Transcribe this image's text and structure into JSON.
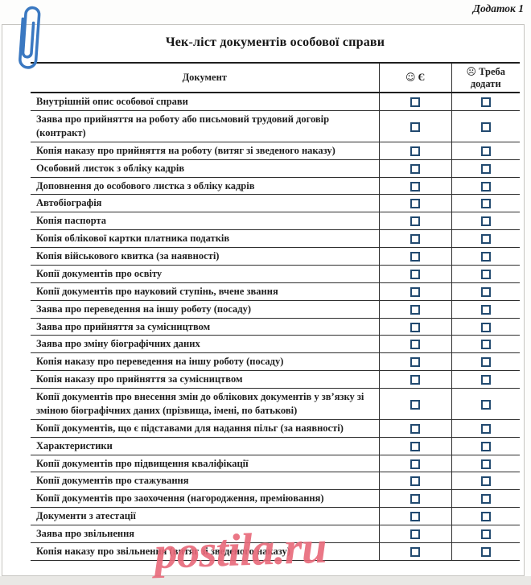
{
  "page": {
    "appendix_label": "Додаток 1",
    "watermark_text": "postila.ru"
  },
  "document": {
    "title": "Чек-ліст документів особової справи"
  },
  "table": {
    "headers": {
      "document": "Документ",
      "have_icon": "☺",
      "have_label": "Є",
      "need_icon": "☹",
      "need_label": "Треба додати"
    },
    "rows": [
      {
        "label": "Внутрішній опис особової справи",
        "have_checked": false,
        "need_checked": false
      },
      {
        "label": "Заява про прийняття на роботу або письмовий трудовий договір (контракт)",
        "have_checked": false,
        "need_checked": false
      },
      {
        "label": "Копія наказу про прийняття на роботу (витяг зі зведеного наказу)",
        "have_checked": false,
        "need_checked": false
      },
      {
        "label": "Особовий листок з обліку кадрів",
        "have_checked": false,
        "need_checked": false
      },
      {
        "label": "Доповнення до особового листка з обліку кадрів",
        "have_checked": false,
        "need_checked": false
      },
      {
        "label": "Автобіографія",
        "have_checked": false,
        "need_checked": false
      },
      {
        "label": "Копія паспорта",
        "have_checked": false,
        "need_checked": false
      },
      {
        "label": "Копія облікової картки платника податків",
        "have_checked": false,
        "need_checked": false
      },
      {
        "label": "Копія військового квитка (за наявності)",
        "have_checked": false,
        "need_checked": false
      },
      {
        "label": "Копії документів про освіту",
        "have_checked": false,
        "need_checked": false
      },
      {
        "label": "Копії документів про науковий ступінь, вчене звання",
        "have_checked": false,
        "need_checked": false
      },
      {
        "label": "Заява про переведення на іншу роботу (посаду)",
        "have_checked": false,
        "need_checked": false
      },
      {
        "label": "Заява про прийняття за сумісництвом",
        "have_checked": false,
        "need_checked": false
      },
      {
        "label": "Заява про зміну біографічних даних",
        "have_checked": false,
        "need_checked": false
      },
      {
        "label": "Копія наказу про переведення на іншу роботу (посаду)",
        "have_checked": false,
        "need_checked": false
      },
      {
        "label": "Копія наказу про прийняття за сумісництвом",
        "have_checked": false,
        "need_checked": false
      },
      {
        "label": "Копії документів про внесення змін до облікових документів у зв’язку зі зміною біографічних даних (прізвища, імені, по батькові)",
        "have_checked": false,
        "need_checked": false
      },
      {
        "label": "Копії документів, що є підставами для надання пільг (за наявності)",
        "have_checked": false,
        "need_checked": false
      },
      {
        "label": "Характеристики",
        "have_checked": false,
        "need_checked": false
      },
      {
        "label": "Копії документів про підвищення кваліфікації",
        "have_checked": false,
        "need_checked": false
      },
      {
        "label": "Копії документів про стажування",
        "have_checked": false,
        "need_checked": false
      },
      {
        "label": "Копії документів про заохочення (нагородження, преміювання)",
        "have_checked": false,
        "need_checked": false
      },
      {
        "label": "Документи з атестації",
        "have_checked": false,
        "need_checked": false
      },
      {
        "label": "Заява про звільнення",
        "have_checked": false,
        "need_checked": false
      },
      {
        "label": "Копія наказу про звільнення (витяг зі зведеного наказу)",
        "have_checked": false,
        "need_checked": false
      }
    ]
  },
  "colors": {
    "checkbox_border": "#224a70",
    "watermark_pink": "#e8697a",
    "paperclip_blue": "#3a78c1",
    "table_line": "#2e2e2e"
  }
}
